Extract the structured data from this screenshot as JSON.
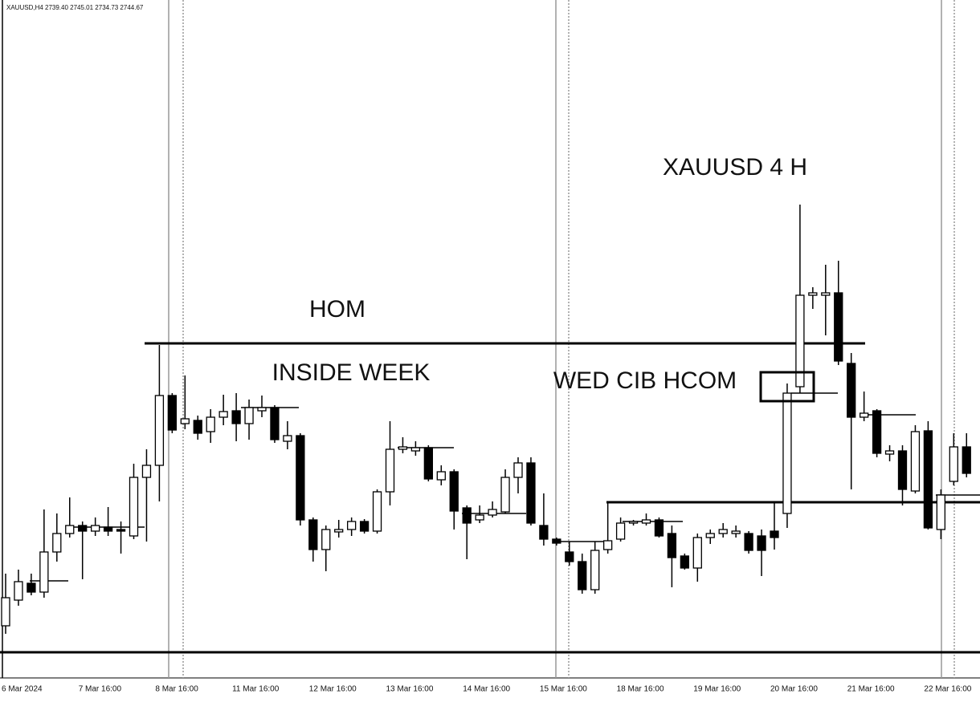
{
  "chart_data": {
    "type": "candlestick",
    "header": "XAUUSD,H4  2739.40 2745.01 2734.73 2744.67",
    "title": "XAUUSD 4 H",
    "annotations": [
      "HOM",
      "INSIDE WEEK",
      "WED CIB HCOM"
    ],
    "categories": [
      "6 Mar 2024",
      null,
      null,
      null,
      null,
      null,
      "7 Mar 16:00",
      null,
      null,
      null,
      null,
      null,
      "8 Mar 16:00",
      null,
      null,
      null,
      null,
      null,
      "11 Mar 16:00",
      null,
      null,
      null,
      null,
      null,
      "12 Mar 16:00",
      null,
      null,
      null,
      null,
      null,
      "13 Mar 16:00",
      null,
      null,
      null,
      null,
      null,
      "14 Mar 16:00",
      null,
      null,
      null,
      null,
      null,
      "15 Mar 16:00",
      null,
      null,
      null,
      null,
      null,
      "18 Mar 16:00",
      null,
      null,
      null,
      null,
      null,
      "19 Mar 16:00",
      null,
      null,
      null,
      null,
      null,
      "20 Mar 16:00",
      null,
      null,
      null,
      null,
      null,
      "21 Mar 16:00",
      null,
      null,
      null,
      null,
      null,
      "22 Mar 16:00",
      null,
      null,
      null
    ],
    "open": [
      2152.0,
      2155.2,
      2157.3,
      2156.2,
      2161.2,
      2163.5,
      2164.5,
      2163.8,
      2164.3,
      2164.0,
      2163.2,
      2170.5,
      2172.0,
      2180.7,
      2177.2,
      2177.6,
      2176.2,
      2178.0,
      2178.8,
      2177.2,
      2178.8,
      2179.2,
      2175.0,
      2175.7,
      2165.2,
      2161.5,
      2163.7,
      2164.0,
      2165.0,
      2163.8,
      2168.7,
      2174.0,
      2173.8,
      2174.2,
      2170.2,
      2171.2,
      2166.7,
      2165.2,
      2165.8,
      2166.2,
      2170.5,
      2172.3,
      2164.5,
      2162.8,
      2161.2,
      2160.0,
      2156.5,
      2161.5,
      2162.8,
      2164.8,
      2164.8,
      2165.2,
      2163.5,
      2160.7,
      2159.2,
      2163.0,
      2163.5,
      2163.5,
      2163.5,
      2163.2,
      2163.8,
      2166.0,
      2181.8,
      2193.2,
      2193.2,
      2193.5,
      2184.7,
      2178.0,
      2178.8,
      2173.4,
      2173.8,
      2168.8,
      2176.3,
      2164.0,
      2170.0,
      2174.3
    ],
    "high": [
      2158.5,
      2159.0,
      2158.5,
      2166.5,
      2166.0,
      2168.0,
      2165.0,
      2165.5,
      2166.8,
      2165.0,
      2172.2,
      2174.0,
      2187.0,
      2181.0,
      2183.2,
      2178.2,
      2179.0,
      2180.8,
      2181.0,
      2180.2,
      2180.7,
      2179.5,
      2177.5,
      2176.0,
      2165.5,
      2164.5,
      2165.2,
      2165.5,
      2165.3,
      2169.0,
      2177.5,
      2175.5,
      2175.0,
      2174.5,
      2172.0,
      2171.5,
      2167.0,
      2167.0,
      2167.5,
      2171.5,
      2173.0,
      2173.0,
      2168.5,
      2163.0,
      2162.5,
      2161.0,
      2162.5,
      2167.5,
      2165.5,
      2165.2,
      2166.0,
      2165.5,
      2164.5,
      2161.0,
      2163.5,
      2164.0,
      2164.8,
      2164.5,
      2163.8,
      2164.0,
      2167.5,
      2182.2,
      2204.5,
      2194.2,
      2197.0,
      2197.5,
      2186.0,
      2181.2,
      2179.0,
      2174.5,
      2174.5,
      2177.0,
      2177.5,
      2169.0,
      2176.0,
      2176.0
    ],
    "low": [
      2151.0,
      2154.5,
      2155.8,
      2155.5,
      2160.0,
      2163.0,
      2157.8,
      2163.2,
      2163.2,
      2161.0,
      2162.8,
      2162.5,
      2167.5,
      2176.0,
      2176.5,
      2175.2,
      2174.8,
      2177.0,
      2175.0,
      2175.2,
      2178.0,
      2174.8,
      2174.0,
      2164.5,
      2160.0,
      2158.8,
      2163.0,
      2163.2,
      2163.5,
      2163.5,
      2167.0,
      2173.5,
      2173.2,
      2170.0,
      2169.5,
      2164.0,
      2160.3,
      2164.8,
      2165.5,
      2166.0,
      2168.5,
      2164.5,
      2162.0,
      2162.0,
      2159.5,
      2156.0,
      2156.0,
      2161.0,
      2162.5,
      2164.5,
      2164.5,
      2163.0,
      2156.8,
      2159.0,
      2157.5,
      2162.2,
      2163.0,
      2163.0,
      2161.0,
      2158.2,
      2161.5,
      2164.2,
      2181.0,
      2191.5,
      2188.2,
      2184.5,
      2169.0,
      2177.5,
      2173.0,
      2172.5,
      2167.0,
      2168.5,
      2164.0,
      2162.8,
      2169.5,
      2170.5
    ],
    "close": [
      2155.5,
      2157.5,
      2156.2,
      2161.2,
      2163.5,
      2164.5,
      2163.8,
      2164.5,
      2163.8,
      2163.8,
      2170.5,
      2172.0,
      2180.7,
      2176.4,
      2177.8,
      2176.0,
      2178.0,
      2178.7,
      2177.2,
      2179.2,
      2179.2,
      2175.2,
      2175.7,
      2165.2,
      2161.5,
      2164.0,
      2164.0,
      2165.0,
      2163.8,
      2168.7,
      2174.0,
      2174.3,
      2174.2,
      2170.3,
      2171.2,
      2166.3,
      2164.8,
      2165.8,
      2166.5,
      2170.5,
      2172.3,
      2164.8,
      2162.8,
      2162.3,
      2160.0,
      2156.5,
      2161.4,
      2162.6,
      2164.8,
      2165.0,
      2165.2,
      2163.2,
      2160.5,
      2159.2,
      2163.0,
      2163.5,
      2164.0,
      2163.8,
      2161.4,
      2161.4,
      2163.0,
      2181.0,
      2193.2,
      2193.5,
      2193.5,
      2185.0,
      2178.0,
      2178.5,
      2173.5,
      2173.8,
      2169.0,
      2176.2,
      2164.2,
      2168.3,
      2174.3,
      2171.0
    ],
    "up_color": "#ffffff",
    "down_color": "#000000",
    "edge_color": "#000000",
    "levels": [
      {
        "price": 2187.2
      },
      {
        "price": 2148.7
      },
      {
        "price": 2167.4
      },
      {
        "price": 2157.6
      },
      {
        "price": 2164.3
      },
      {
        "price": 2179.2
      },
      {
        "price": 2174.2
      },
      {
        "price": 2166.0
      },
      {
        "price": 2162.5
      },
      {
        "price": 2165.0
      },
      {
        "price": 2181.0
      },
      {
        "price": 2178.3
      },
      {
        "price": 2168.3
      }
    ],
    "box": {
      "top": 2183.6,
      "bottom": 2180.0
    },
    "ylim": [
      2145.5,
      2230
    ],
    "grid": false
  }
}
